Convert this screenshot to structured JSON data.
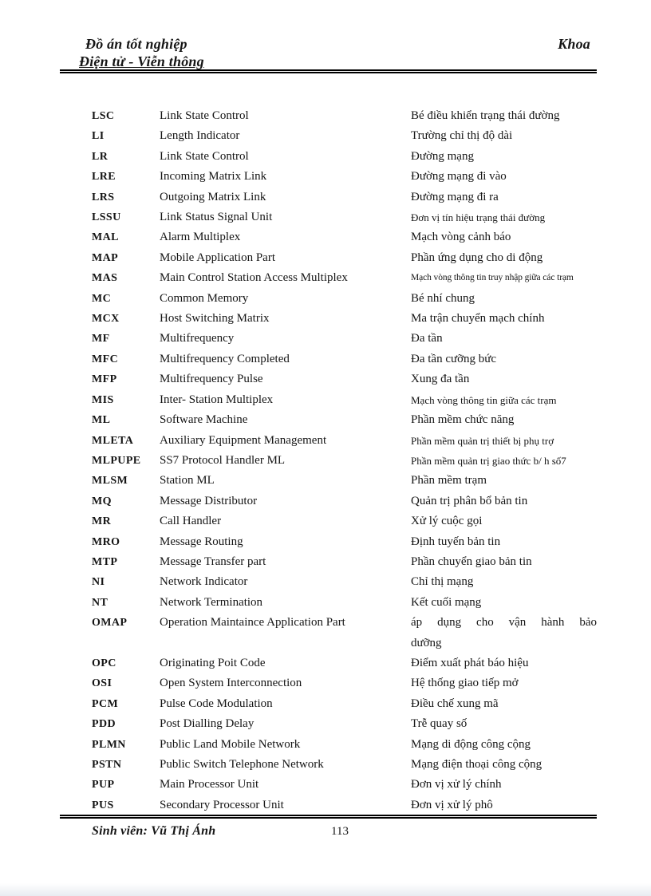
{
  "header": {
    "title_left": "Đồ án tốt nghiệp",
    "title_right": "Khoa",
    "subtitle": "Điện tử - Viễn thông"
  },
  "glossary": {
    "rows": [
      {
        "abbr": "LSC",
        "en": "Link State Control",
        "vi": "Bé điều khiển trạng thái đường"
      },
      {
        "abbr": "LI",
        "en": "Length Indicator",
        "vi": "Trường chỉ thị độ dài"
      },
      {
        "abbr": "LR",
        "en": "Link State Control",
        "vi": "Đường mạng"
      },
      {
        "abbr": "LRE",
        "en": "Incoming Matrix Link",
        "vi": "Đường mạng đi vào"
      },
      {
        "abbr": "LRS",
        "en": "Outgoing Matrix Link",
        "vi": "Đường mạng đi ra"
      },
      {
        "abbr": "LSSU",
        "en": "Link Status Signal Unit",
        "vi": "Đơn vị tín hiệu trạng thái đường",
        "viSize": "small"
      },
      {
        "abbr": "MAL",
        "en": "Alarm Multiplex",
        "vi": "Mạch vòng cảnh báo"
      },
      {
        "abbr": "MAP",
        "en": "Mobile Application Part",
        "vi": "Phần ứng dụng cho di động"
      },
      {
        "abbr": "MAS",
        "en": "Main Control Station Access Multiplex",
        "vi": "Mạch vòng thông tin truy nhập giữa các trạm",
        "viSize": "xsmall"
      },
      {
        "abbr": "MC",
        "en": "Common Memory",
        "vi": "Bé nhí chung"
      },
      {
        "abbr": "MCX",
        "en": "Host Switching Matrix",
        "vi": "Ma trận chuyển mạch chính"
      },
      {
        "abbr": "MF",
        "en": "Multifrequency",
        "vi": "Đa tần"
      },
      {
        "abbr": "MFC",
        "en": "Multifrequency Completed",
        "vi": "Đa tần cưỡng bức"
      },
      {
        "abbr": "MFP",
        "en": "Multifrequency Pulse",
        "vi": "Xung đa tần"
      },
      {
        "abbr": "MIS",
        "en": "Inter- Station Multiplex",
        "vi": "Mạch vòng thông tin giữa các trạm",
        "viSize": "small"
      },
      {
        "abbr": "ML",
        "en": "Software Machine",
        "vi": "Phần mềm chức năng"
      },
      {
        "abbr": "MLETA",
        "en": "Auxiliary Equipment Management",
        "vi": "Phần mềm quản trị thiết bị phụ trợ",
        "viSize": "small"
      },
      {
        "abbr": "MLPUPE",
        "en": "SS7 Protocol Handler ML",
        "vi": "Phần mềm quản trị giao thức b/ h số7",
        "viSize": "small"
      },
      {
        "abbr": "MLSM",
        "en": "Station ML",
        "vi": "Phần mềm trạm"
      },
      {
        "abbr": "MQ",
        "en": "Message Distributor",
        "vi": "Quản trị phân bổ bản tin"
      },
      {
        "abbr": "MR",
        "en": "Call Handler",
        "vi": "Xử lý cuộc gọi"
      },
      {
        "abbr": "MRO",
        "en": "Message Routing",
        "vi": "Định tuyến bản tin"
      },
      {
        "abbr": "MTP",
        "en": "Message Transfer part",
        "vi": "Phần chuyển giao bản tin"
      },
      {
        "abbr": "NI",
        "en": "Network Indicator",
        "vi": "Chỉ thị mạng"
      },
      {
        "abbr": "NT",
        "en": "Network Termination",
        "vi": "Kết cuối mạng"
      },
      {
        "abbr": "OMAP",
        "en": "Operation Maintaince Application Part",
        "vi": "áp dụng cho vận hành bảo",
        "vi_line2": "dưỡng"
      },
      {
        "abbr": "OPC",
        "en": "Originating Poit Code",
        "vi": "Điểm xuất phát báo hiệu"
      },
      {
        "abbr": "OSI",
        "en": "Open System Interconnection",
        "vi": "Hệ thống giao tiếp mở"
      },
      {
        "abbr": "PCM",
        "en": "Pulse Code Modulation",
        "vi": "Điều chế xung mã"
      },
      {
        "abbr": "PDD",
        "en": "Post Dialling Delay",
        "vi": "Trễ quay số"
      },
      {
        "abbr": "PLMN",
        "en": "Public Land Mobile Network",
        "vi": "Mạng di động công cộng"
      },
      {
        "abbr": "PSTN",
        "en": "Public Switch Telephone Network",
        "vi": "Mạng điện thoại công cộng"
      },
      {
        "abbr": "PUP",
        "en": "Main Processor Unit",
        "vi": "Đơn vị xử lý chính"
      },
      {
        "abbr": "PUS",
        "en": "Secondary Processor Unit",
        "vi": "Đơn vị xử lý phô"
      }
    ]
  },
  "footer": {
    "student": "Sinh viên: Vũ Thị Ánh",
    "page_number": "113"
  },
  "colors": {
    "text": "#151515",
    "rule": "#000000",
    "background": "#ffffff"
  }
}
